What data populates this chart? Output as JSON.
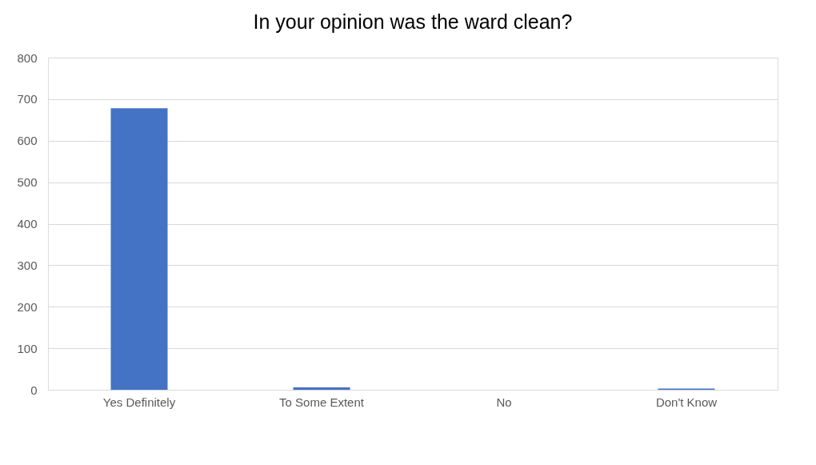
{
  "chart_data": {
    "type": "bar",
    "title": "In your opinion was the ward clean?",
    "categories": [
      "Yes Definitely",
      "To Some Extent",
      "No",
      "Don't Know"
    ],
    "values": [
      678,
      6,
      0,
      3
    ],
    "color": "#4472c4",
    "ylim": [
      0,
      800
    ],
    "yticks": [
      0,
      100,
      200,
      300,
      400,
      500,
      600,
      700,
      800
    ],
    "grid": "y"
  }
}
